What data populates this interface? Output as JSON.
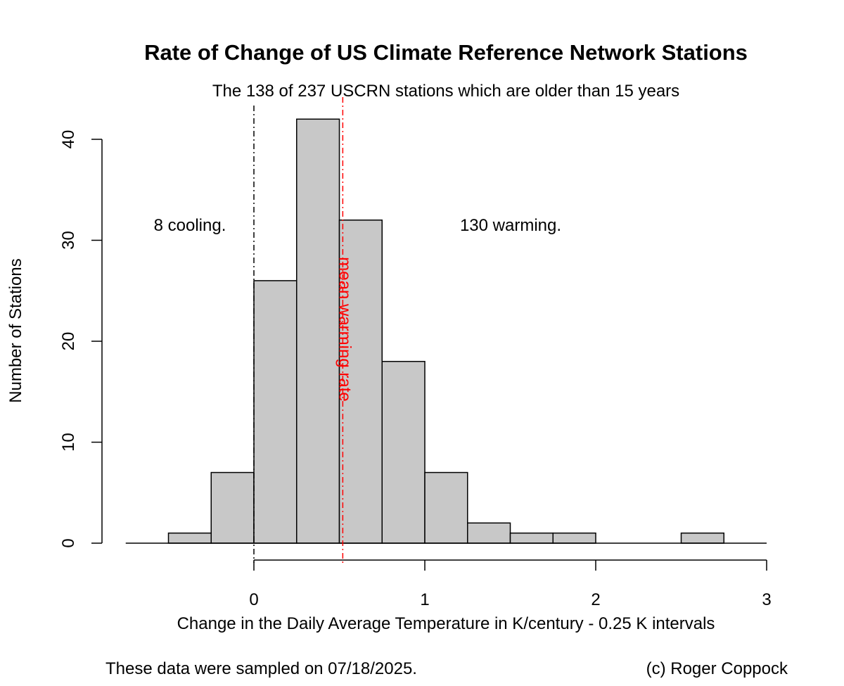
{
  "chart_data": {
    "type": "bar",
    "title": "Rate of Change of US Climate Reference Network Stations",
    "subtitle": "The 138 of 237 USCRN stations which are older than 15 years",
    "xlabel": "Change in the Daily Average Temperature in K/century - 0.25 K intervals",
    "ylabel": "Number of Stations",
    "bin_width": 0.25,
    "bins": [
      {
        "start": -0.5,
        "end": -0.25,
        "count": 1
      },
      {
        "start": -0.25,
        "end": 0.0,
        "count": 7
      },
      {
        "start": 0.0,
        "end": 0.25,
        "count": 26
      },
      {
        "start": 0.25,
        "end": 0.5,
        "count": 42
      },
      {
        "start": 0.5,
        "end": 0.75,
        "count": 32
      },
      {
        "start": 0.75,
        "end": 1.0,
        "count": 18
      },
      {
        "start": 1.0,
        "end": 1.25,
        "count": 7
      },
      {
        "start": 1.25,
        "end": 1.5,
        "count": 2
      },
      {
        "start": 1.5,
        "end": 1.75,
        "count": 1
      },
      {
        "start": 1.75,
        "end": 2.0,
        "count": 1
      },
      {
        "start": 2.5,
        "end": 2.75,
        "count": 1
      }
    ],
    "xlim": [
      -0.75,
      3.0
    ],
    "ylim": [
      0,
      42
    ],
    "x_ticks": [
      0,
      1,
      2,
      3
    ],
    "y_ticks": [
      0,
      10,
      20,
      30,
      40
    ],
    "zero_line_x": 0,
    "mean_warming_rate": 0.52,
    "mean_line_label": "mean warming rate",
    "cooling_label": "8 cooling.",
    "warming_label": "130 warming.",
    "bar_fill": "#c8c8c8",
    "mean_line_color": "#ff0000"
  },
  "footer": {
    "sampled": "These data were sampled on 07/18/2025.",
    "credit": "(c) Roger Coppock"
  }
}
